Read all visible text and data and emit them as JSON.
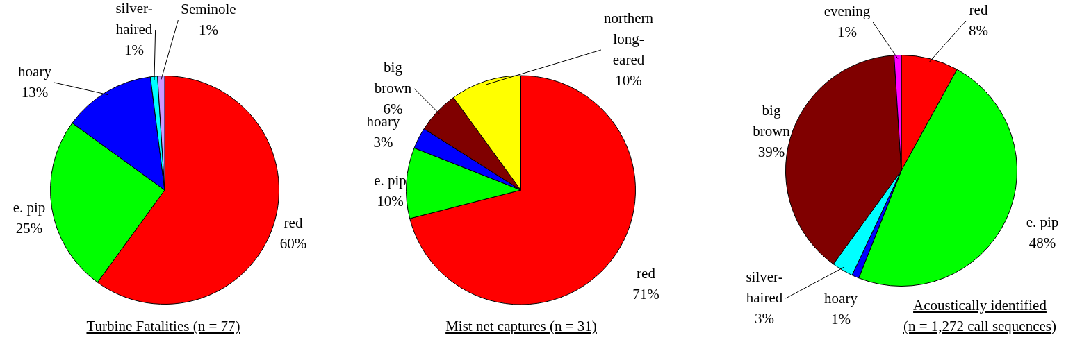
{
  "chart_data": [
    {
      "type": "pie",
      "title": "Turbine Fatalities (n = 77)",
      "categories": [
        "red",
        "e. pip",
        "hoary",
        "silver-haired",
        "Seminole"
      ],
      "values": [
        60,
        25,
        13,
        1,
        1
      ],
      "value_labels": [
        "60%",
        "25%",
        "13%",
        "1%",
        "1%"
      ],
      "colors": [
        "#ff0000",
        "#00ff00",
        "#0000ff",
        "#00ffff",
        "#cc99ff"
      ]
    },
    {
      "type": "pie",
      "title": "Mist net captures (n = 31)",
      "categories": [
        "red",
        "e. pip",
        "hoary",
        "big brown",
        "northern long-eared"
      ],
      "values": [
        71,
        10,
        3,
        6,
        10
      ],
      "value_labels": [
        "71%",
        "10%",
        "3%",
        "6%",
        "10%"
      ],
      "colors": [
        "#ff0000",
        "#00ff00",
        "#0000ff",
        "#800000",
        "#ffff00"
      ]
    },
    {
      "type": "pie",
      "title": "Acoustically identified (n = 1,272 call sequences)",
      "categories": [
        "red",
        "e. pip",
        "hoary",
        "silver-haired",
        "big brown",
        "evening"
      ],
      "values": [
        8,
        48,
        1,
        3,
        39,
        1
      ],
      "value_labels": [
        "8%",
        "48%",
        "1%",
        "3%",
        "39%",
        "1%"
      ],
      "colors": [
        "#ff0000",
        "#00ff00",
        "#0000ff",
        "#00ffff",
        "#800000",
        "#ff00ff"
      ]
    }
  ]
}
